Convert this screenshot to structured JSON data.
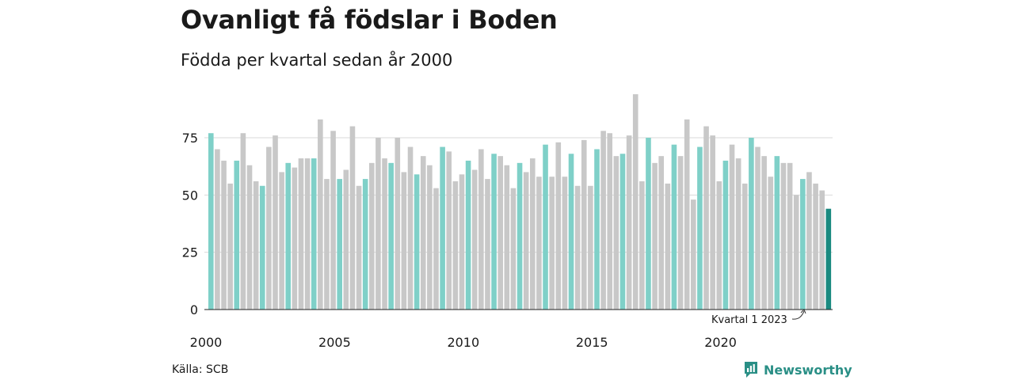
{
  "title": "Ovanligt få födslar i Boden",
  "subtitle": "Födda per kvartal sedan år 2000",
  "source": "Källa: SCB",
  "brand": "Newsworthy",
  "colors": {
    "first_quarter": "#7fd0c8",
    "other_quarter": "#c8c8c8",
    "latest": "#1a8a80",
    "gridline": "#d9d9d9",
    "brand": "#2a8f86"
  },
  "chart_data": {
    "type": "bar",
    "start": "2000 Q1",
    "frequency": "quarterly",
    "x_tick_labels": [
      "2000",
      "2005",
      "2010",
      "2015",
      "2020"
    ],
    "y_ticks": [
      0,
      25,
      50,
      75
    ],
    "ylim": [
      0,
      95
    ],
    "grid": true,
    "annotation": "Kvartal 1 2023",
    "values": [
      77,
      70,
      65,
      55,
      65,
      77,
      63,
      56,
      54,
      71,
      76,
      60,
      64,
      62,
      66,
      66,
      66,
      83,
      57,
      78,
      57,
      61,
      80,
      54,
      57,
      64,
      75,
      66,
      64,
      75,
      60,
      71,
      59,
      67,
      63,
      53,
      71,
      69,
      56,
      59,
      65,
      61,
      70,
      57,
      68,
      67,
      63,
      53,
      64,
      60,
      66,
      58,
      72,
      58,
      73,
      58,
      68,
      54,
      74,
      54,
      70,
      78,
      77,
      67,
      68,
      76,
      94,
      56,
      75,
      64,
      67,
      55,
      72,
      67,
      83,
      48,
      71,
      80,
      76,
      56,
      65,
      72,
      66,
      55,
      75,
      71,
      67,
      58,
      67,
      64,
      64,
      50,
      57,
      60,
      55,
      52,
      44
    ]
  }
}
